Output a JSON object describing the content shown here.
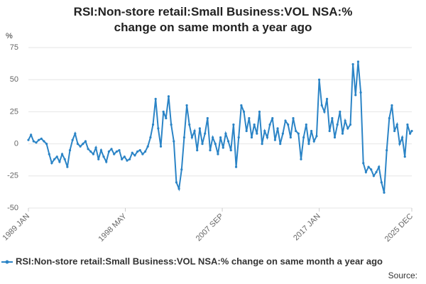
{
  "chart_data": {
    "type": "line",
    "title": "RSI:Non-store retail:Small Business:VOL NSA:% change on same month a year ago",
    "y_label": "%",
    "source": "Source:",
    "xlim": [
      "1989-01",
      "2025-12"
    ],
    "xticks": [
      {
        "value": "1989-01",
        "label": "1989 JAN"
      },
      {
        "value": "1998-05",
        "label": "1998 MAY"
      },
      {
        "value": "2007-09",
        "label": "2007 SEP"
      },
      {
        "value": "2017-01",
        "label": "2017 JAN"
      },
      {
        "value": "2025-12",
        "label": "2025 DEC"
      }
    ],
    "ylim": [
      -50,
      75
    ],
    "yticks": [
      -50,
      -25,
      0,
      25,
      50,
      75
    ],
    "grid": true,
    "x": [
      "1989-01",
      "1989-04",
      "1989-07",
      "1989-10",
      "1990-01",
      "1990-04",
      "1990-07",
      "1990-10",
      "1991-01",
      "1991-04",
      "1991-07",
      "1991-10",
      "1992-01",
      "1992-04",
      "1992-07",
      "1992-10",
      "1993-01",
      "1993-04",
      "1993-07",
      "1993-10",
      "1994-01",
      "1994-04",
      "1994-07",
      "1994-10",
      "1995-01",
      "1995-04",
      "1995-07",
      "1995-10",
      "1996-01",
      "1996-04",
      "1996-07",
      "1996-10",
      "1997-01",
      "1997-04",
      "1997-07",
      "1997-10",
      "1998-01",
      "1998-04",
      "1998-07",
      "1998-10",
      "1999-01",
      "1999-04",
      "1999-07",
      "1999-10",
      "2000-01",
      "2000-04",
      "2000-07",
      "2000-10",
      "2001-01",
      "2001-04",
      "2001-07",
      "2001-10",
      "2002-01",
      "2002-04",
      "2002-07",
      "2002-10",
      "2003-01",
      "2003-04",
      "2003-07",
      "2003-10",
      "2004-01",
      "2004-04",
      "2004-07",
      "2004-10",
      "2005-01",
      "2005-04",
      "2005-07",
      "2005-10",
      "2006-01",
      "2006-04",
      "2006-07",
      "2006-10",
      "2007-01",
      "2007-04",
      "2007-07",
      "2007-10",
      "2008-01",
      "2008-04",
      "2008-07",
      "2008-10",
      "2009-01",
      "2009-04",
      "2009-07",
      "2009-10",
      "2010-01",
      "2010-04",
      "2010-07",
      "2010-10",
      "2011-01",
      "2011-04",
      "2011-07",
      "2011-10",
      "2012-01",
      "2012-04",
      "2012-07",
      "2012-10",
      "2013-01",
      "2013-04",
      "2013-07",
      "2013-10",
      "2014-01",
      "2014-04",
      "2014-07",
      "2014-10",
      "2015-01",
      "2015-04",
      "2015-07",
      "2015-10",
      "2016-01",
      "2016-04",
      "2016-07",
      "2016-10",
      "2017-01",
      "2017-04",
      "2017-07",
      "2017-10",
      "2018-01",
      "2018-04",
      "2018-07",
      "2018-10",
      "2019-01",
      "2019-04",
      "2019-07",
      "2019-10",
      "2020-01",
      "2020-04",
      "2020-07",
      "2020-10",
      "2021-01",
      "2021-04",
      "2021-07",
      "2021-10",
      "2022-01",
      "2022-04",
      "2022-07",
      "2022-10",
      "2023-01",
      "2023-04",
      "2023-07",
      "2023-10",
      "2024-01",
      "2024-04",
      "2024-07",
      "2024-10",
      "2025-01",
      "2025-04",
      "2025-07",
      "2025-10",
      "2025-12"
    ],
    "series": [
      {
        "name": "RSI:Non-store retail:Small Business:VOL NSA:% change on same month a year ago",
        "color": "#2b84c6",
        "values": [
          3,
          7,
          2,
          1,
          3,
          4,
          2,
          0,
          -8,
          -15,
          -12,
          -10,
          -14,
          -8,
          -12,
          -18,
          -5,
          3,
          8,
          0,
          -2,
          0,
          2,
          -4,
          -6,
          -8,
          -3,
          -12,
          -5,
          -10,
          -14,
          -6,
          -4,
          -8,
          -6,
          -5,
          -12,
          -10,
          -13,
          -12,
          -7,
          -9,
          -6,
          -5,
          -8,
          -6,
          -2,
          5,
          15,
          35,
          12,
          -2,
          25,
          20,
          37,
          15,
          2,
          -30,
          -35,
          -20,
          5,
          30,
          15,
          5,
          10,
          -5,
          12,
          0,
          8,
          20,
          -5,
          5,
          0,
          -8,
          5,
          -3,
          8,
          2,
          -5,
          15,
          -18,
          5,
          30,
          25,
          10,
          20,
          5,
          15,
          8,
          25,
          0,
          10,
          5,
          15,
          20,
          3,
          12,
          0,
          8,
          18,
          15,
          5,
          20,
          10,
          8,
          -12,
          5,
          15,
          0,
          10,
          2,
          6,
          50,
          30,
          25,
          35,
          10,
          20,
          5,
          15,
          25,
          8,
          18,
          12,
          15,
          62,
          38,
          64,
          40,
          -15,
          -22,
          -18,
          -20,
          -25,
          -22,
          -18,
          -30,
          -38,
          -5,
          20,
          30,
          10,
          15,
          0,
          5,
          -10,
          15,
          8,
          10
        ]
      }
    ]
  }
}
